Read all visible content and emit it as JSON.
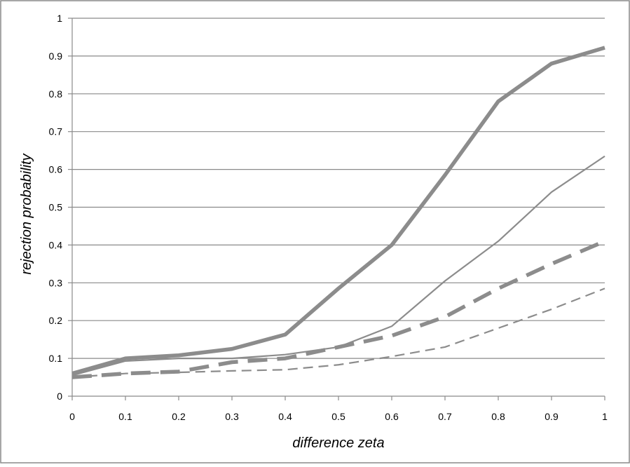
{
  "chart_data": {
    "type": "line",
    "title": "",
    "xlabel": "difference zeta",
    "ylabel": "rejection probability",
    "xlim": [
      0,
      1
    ],
    "ylim": [
      0,
      1
    ],
    "x": [
      0,
      0.1,
      0.2,
      0.3,
      0.4,
      0.5,
      0.6,
      0.7,
      0.8,
      0.9,
      1
    ],
    "x_ticks": [
      "0",
      "0.1",
      "0.2",
      "0.3",
      "0.4",
      "0.5",
      "0.6",
      "0.7",
      "0.8",
      "0.9",
      "1"
    ],
    "y_ticks": [
      "0",
      "0.1",
      "0.2",
      "0.3",
      "0.4",
      "0.5",
      "0.6",
      "0.7",
      "0.8",
      "0.9",
      "1"
    ],
    "grid": "horizontal",
    "legend": "none",
    "series": [
      {
        "style": "thick-solid",
        "color": "#8c8c8c",
        "values": [
          0.06,
          0.1,
          0.108,
          0.125,
          0.163,
          0.285,
          0.4,
          0.585,
          0.78,
          0.88,
          0.922
        ]
      },
      {
        "style": "thin-solid",
        "color": "#8c8c8c",
        "values": [
          0.055,
          0.093,
          0.1,
          0.1,
          0.11,
          0.13,
          0.185,
          0.305,
          0.41,
          0.54,
          0.635
        ]
      },
      {
        "style": "thick-dashed",
        "color": "#8c8c8c",
        "values": [
          0.05,
          0.06,
          0.065,
          0.09,
          0.1,
          0.13,
          0.16,
          0.21,
          0.285,
          0.35,
          0.41
        ]
      },
      {
        "style": "thin-dashed",
        "color": "#8c8c8c",
        "values": [
          0.05,
          0.06,
          0.063,
          0.067,
          0.07,
          0.083,
          0.105,
          0.13,
          0.18,
          0.23,
          0.285
        ]
      }
    ]
  }
}
